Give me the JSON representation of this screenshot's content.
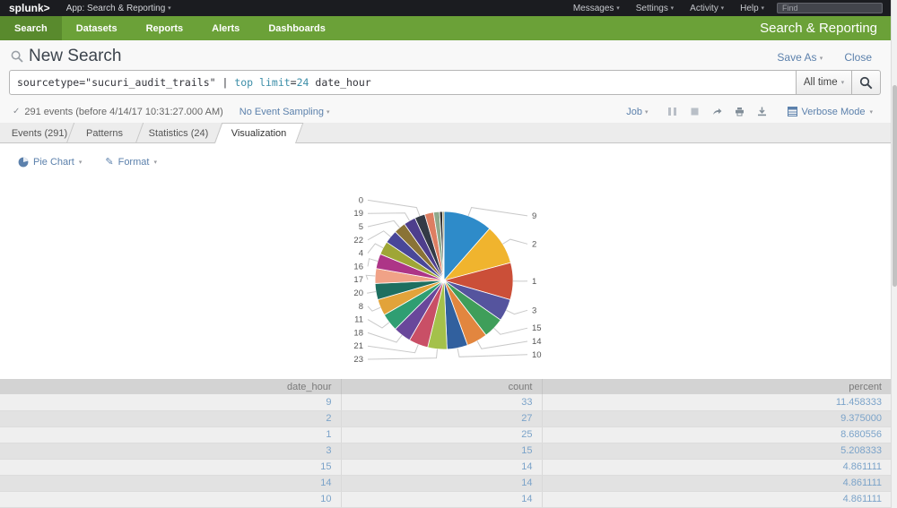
{
  "icons": {
    "caret": "▾",
    "check": "✓",
    "pencil": "✎"
  },
  "topbar": {
    "logo": "splunk>",
    "app_label": "App: Search & Reporting",
    "menus": [
      "Messages",
      "Settings",
      "Activity",
      "Help"
    ],
    "find_placeholder": "Find"
  },
  "appbar": {
    "items": [
      "Search",
      "Datasets",
      "Reports",
      "Alerts",
      "Dashboards"
    ],
    "active": "Search",
    "title": "Search & Reporting",
    "green": "#6ba138",
    "active_green": "#598a2d"
  },
  "search": {
    "title": "New Search",
    "save_as_label": "Save As",
    "close_label": "Close",
    "query_tokens": [
      {
        "text": "sourcetype=\"sucuri_audit_trails\" | ",
        "color": "#33343b"
      },
      {
        "text": "top",
        "color": "#3c8ea8"
      },
      {
        "text": " ",
        "color": "#33343b"
      },
      {
        "text": "limit",
        "color": "#3c8ea8"
      },
      {
        "text": "=",
        "color": "#33343b"
      },
      {
        "text": "24",
        "color": "#3c8ea8"
      },
      {
        "text": " date_hour",
        "color": "#33343b"
      }
    ],
    "time_range_label": "All time"
  },
  "status": {
    "events_summary": "291 events (before 4/14/17 10:31:27.000 AM)",
    "sampling_label": "No Event Sampling",
    "job_label": "Job",
    "mode_label": "Verbose Mode"
  },
  "tabs": [
    {
      "label": "Events (291)",
      "active": false
    },
    {
      "label": "Patterns",
      "active": false
    },
    {
      "label": "Statistics (24)",
      "active": false
    },
    {
      "label": "Visualization",
      "active": true
    }
  ],
  "viz": {
    "chart_type_label": "Pie Chart",
    "format_label": "Format"
  },
  "chart_data": {
    "type": "pie",
    "title": "",
    "x_field": "date_hour",
    "total_count": 288,
    "legend": "none",
    "label_color": "#555555",
    "leader_color": "#c9c9c9",
    "slices": [
      {
        "label": "9",
        "count": 33,
        "percent": 11.458333,
        "color": "#2e8bc9"
      },
      {
        "label": "2",
        "count": 27,
        "percent": 9.375,
        "color": "#f0b42e"
      },
      {
        "label": "1",
        "count": 25,
        "percent": 8.680556,
        "color": "#cb4f38"
      },
      {
        "label": "3",
        "count": 15,
        "percent": 5.208333,
        "color": "#55549e"
      },
      {
        "label": "15",
        "count": 14,
        "percent": 4.861111,
        "color": "#3f9e5a"
      },
      {
        "label": "14",
        "count": 14,
        "percent": 4.861111,
        "color": "#e2863f"
      },
      {
        "label": "10",
        "count": 14,
        "percent": 4.861111,
        "color": "#31609e"
      },
      {
        "label": "23",
        "count": 13,
        "percent": 4.513889,
        "color": "#a4c14b"
      },
      {
        "label": "21",
        "count": 13,
        "percent": 4.513889,
        "color": "#c94f66"
      },
      {
        "label": "18",
        "count": 12,
        "percent": 4.166667,
        "color": "#69479b"
      },
      {
        "label": "11",
        "count": 12,
        "percent": 4.166667,
        "color": "#2f9e72"
      },
      {
        "label": "8",
        "count": 11,
        "percent": 3.819444,
        "color": "#e2a33a"
      },
      {
        "label": "20",
        "count": 11,
        "percent": 3.819444,
        "color": "#1e6f60"
      },
      {
        "label": "17",
        "count": 10,
        "percent": 3.472222,
        "color": "#f0a287"
      },
      {
        "label": "16",
        "count": 10,
        "percent": 3.472222,
        "color": "#ad3587"
      },
      {
        "label": "4",
        "count": 9,
        "percent": 3.125,
        "color": "#9fa636"
      },
      {
        "label": "22",
        "count": 9,
        "percent": 3.125,
        "color": "#494798"
      },
      {
        "label": "5",
        "count": 8,
        "percent": 2.777778,
        "color": "#8a7336"
      },
      {
        "label": "19",
        "count": 8,
        "percent": 2.777778,
        "color": "#4e3e8c"
      },
      {
        "label": "0",
        "count": 7,
        "percent": 2.430556,
        "color": "#333a46"
      },
      {
        "label": "",
        "count": 6,
        "percent": 2.083333,
        "color": "#dd7e62"
      },
      {
        "label": "",
        "count": 4,
        "percent": 1.388889,
        "color": "#8fa98c"
      },
      {
        "label": "",
        "count": 2,
        "percent": 0.694444,
        "color": "#2e2e2e"
      },
      {
        "label": "",
        "count": 1,
        "percent": 0.347222,
        "color": "#93803c"
      }
    ]
  },
  "table": {
    "columns": [
      "date_hour",
      "count",
      "percent"
    ],
    "rows": [
      [
        "9",
        "33",
        "11.458333"
      ],
      [
        "2",
        "27",
        "9.375000"
      ],
      [
        "1",
        "25",
        "8.680556"
      ],
      [
        "3",
        "15",
        "5.208333"
      ],
      [
        "15",
        "14",
        "4.861111"
      ],
      [
        "14",
        "14",
        "4.861111"
      ],
      [
        "10",
        "14",
        "4.861111"
      ]
    ]
  }
}
